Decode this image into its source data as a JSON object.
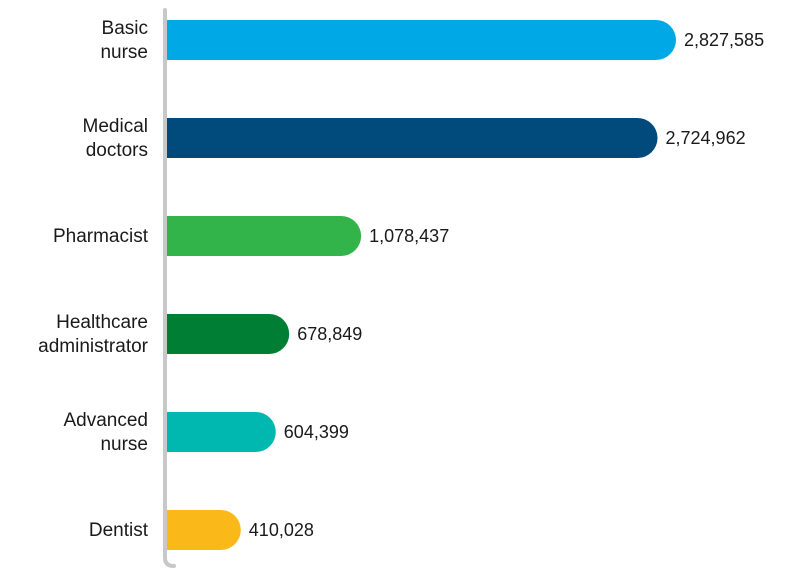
{
  "chart_data": {
    "type": "bar",
    "orientation": "horizontal",
    "categories": [
      [
        "Basic",
        "nurse"
      ],
      [
        "Medical",
        "doctors"
      ],
      [
        "Pharmacist"
      ],
      [
        "Healthcare",
        "administrator"
      ],
      [
        "Advanced",
        "nurse"
      ],
      [
        "Dentist"
      ]
    ],
    "values": [
      2827585,
      2724962,
      1078437,
      678849,
      604399,
      410028
    ],
    "value_labels": [
      "2,827,585",
      "2,724,962",
      "1,078,437",
      "678,849",
      "604,399",
      "410,028"
    ],
    "colors": [
      "#00a8e6",
      "#004a7c",
      "#33b44a",
      "#007f34",
      "#00b8b0",
      "#fbb919"
    ],
    "axis_color": "#c8c8c8",
    "grid": false,
    "legend": "none",
    "xlim": [
      0,
      2827585
    ]
  }
}
